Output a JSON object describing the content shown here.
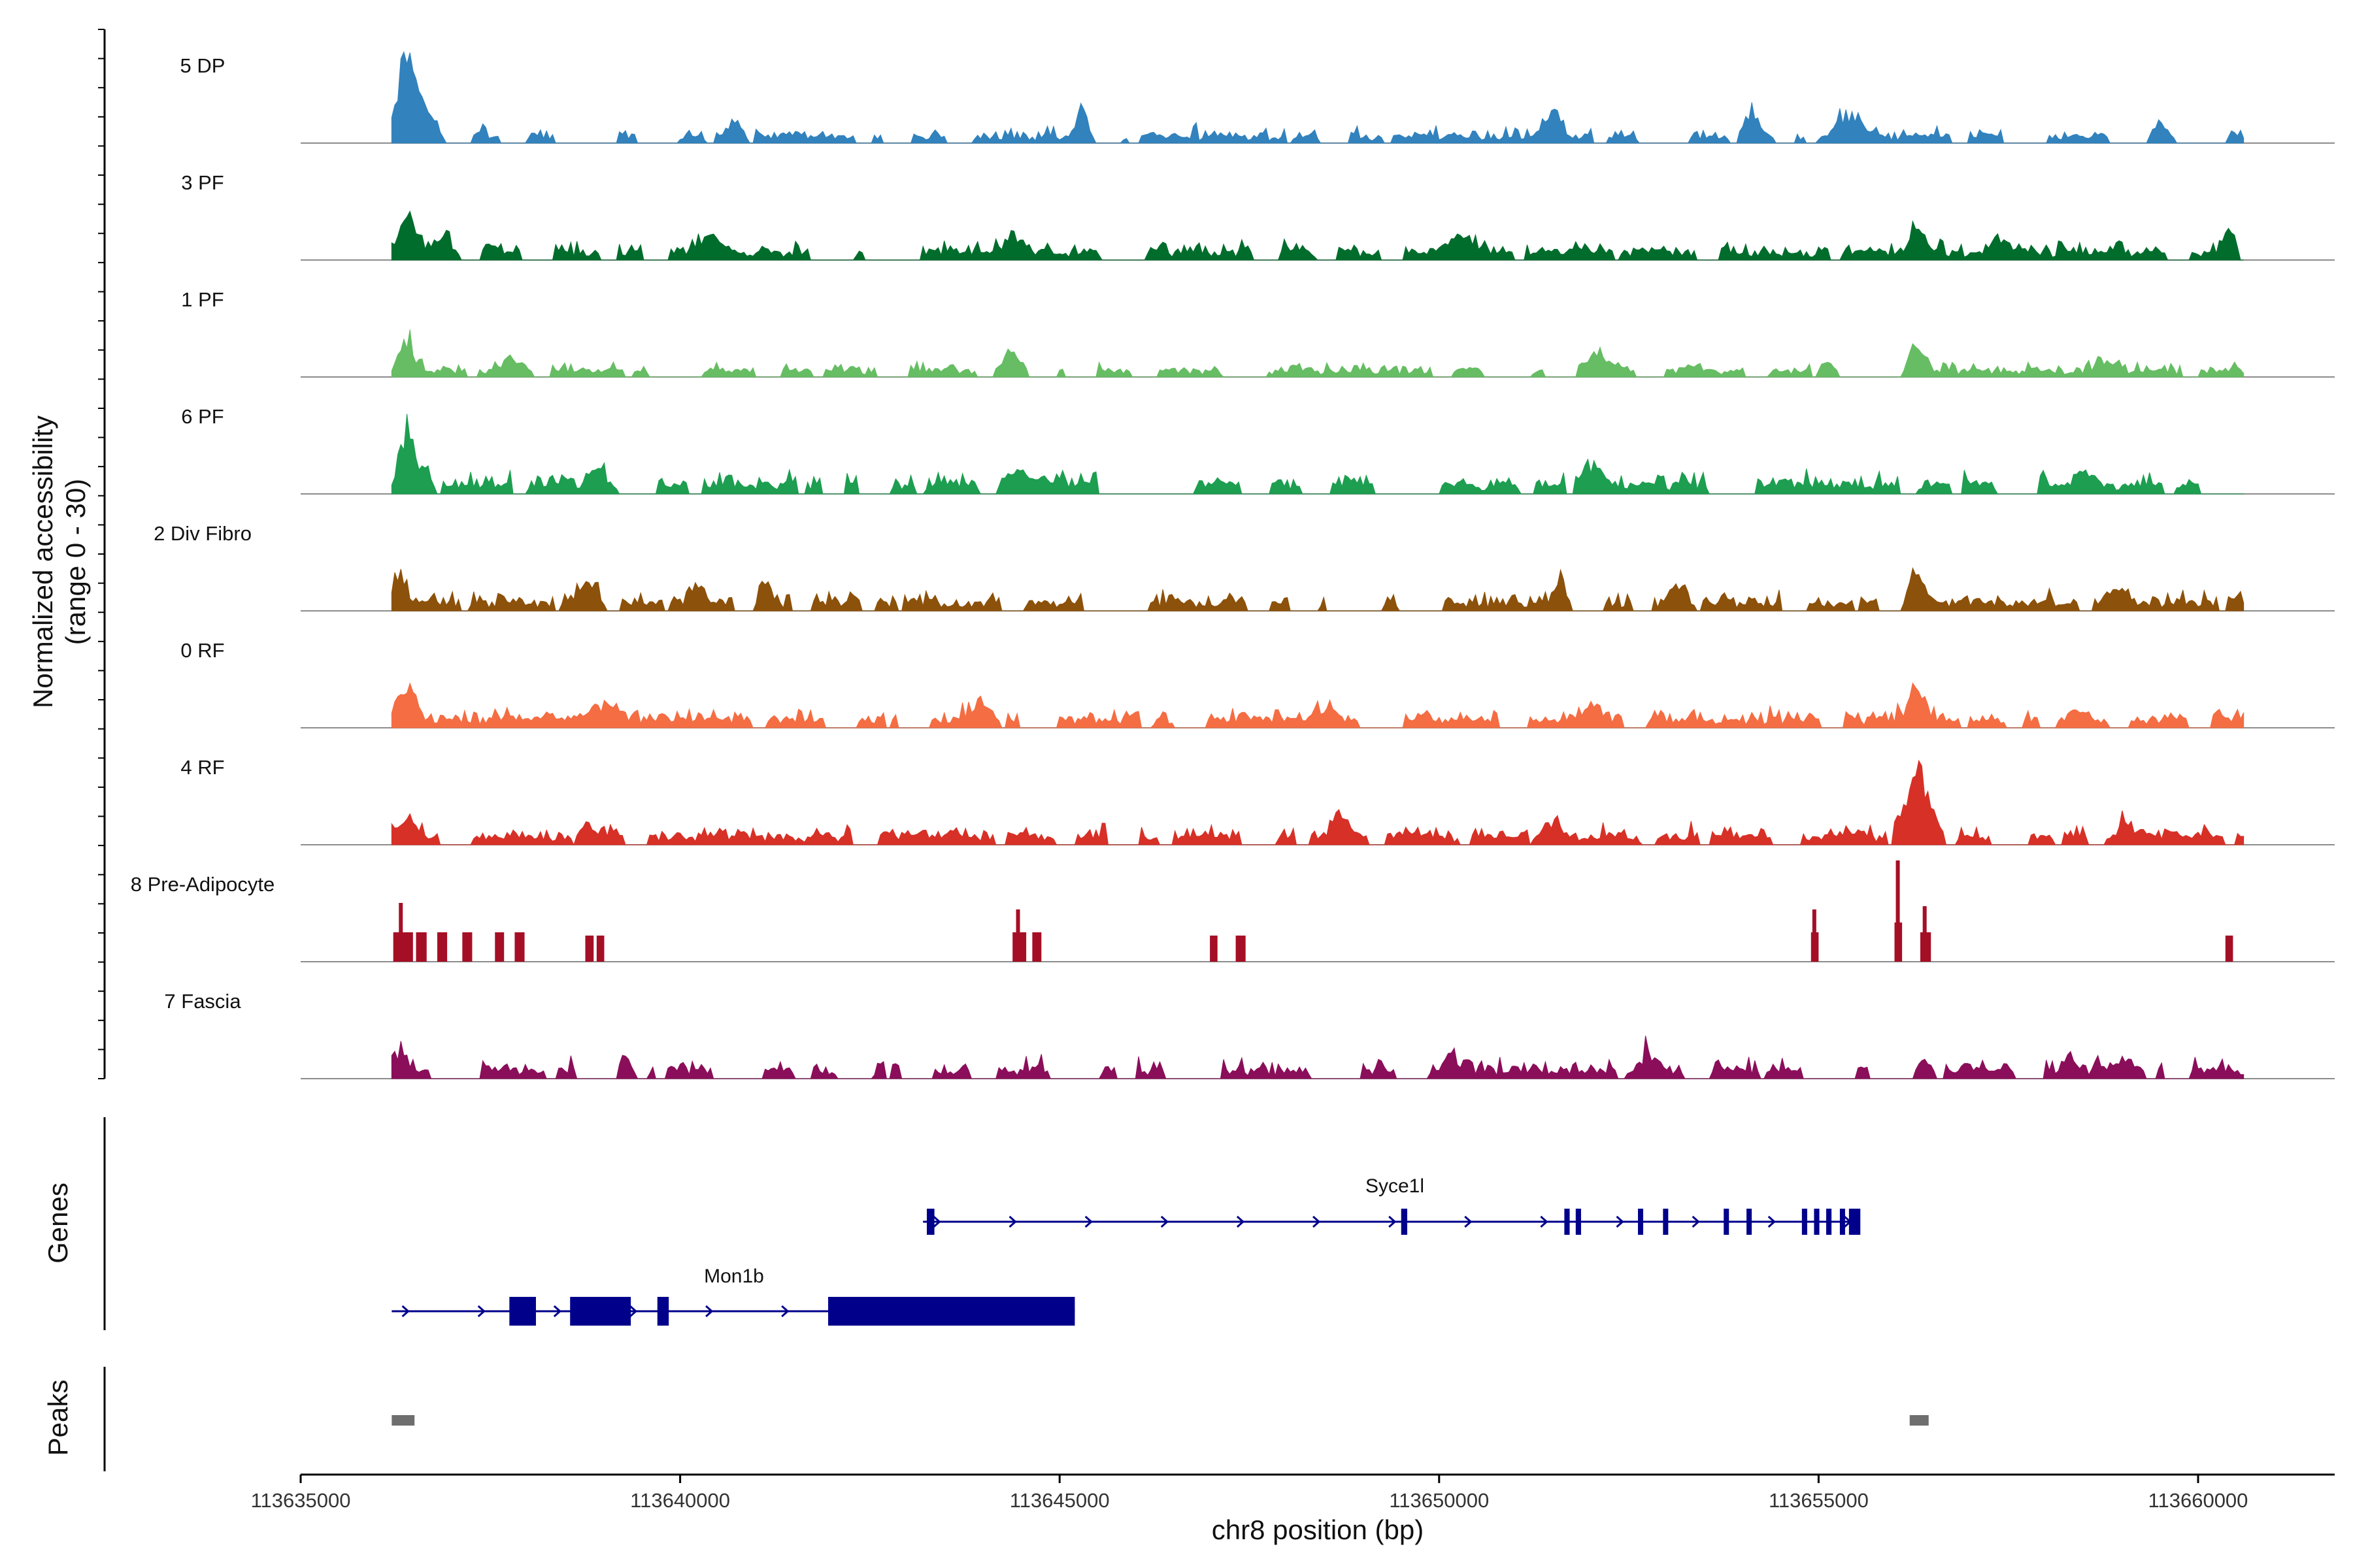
{
  "chart_data": {
    "type": "area",
    "title": "",
    "ylabel_line1": "Normalized accessibility",
    "ylabel_line2": "(range 0 - 30)",
    "xlabel": "chr8 position (bp)",
    "chromosome": "chr8",
    "xlim": [
      113635000,
      113661800
    ],
    "ylim": [
      0,
      30
    ],
    "x_ticks": [
      {
        "value": 113635000,
        "label": "113635000"
      },
      {
        "value": 113640000,
        "label": "113640000"
      },
      {
        "value": 113645000,
        "label": "113645000"
      },
      {
        "value": 113650000,
        "label": "113650000"
      },
      {
        "value": 113655000,
        "label": "113655000"
      },
      {
        "value": 113660000,
        "label": "113660000"
      }
    ],
    "coverage_start": 113636200,
    "coverage_end": 113660600,
    "tracks": [
      {
        "name": "5 DP",
        "color": "#3182BD",
        "base": 1.6,
        "noise": 1.4,
        "density": 0.62,
        "seed": 11,
        "peaks": [
          [
            113636400,
            26,
            160
          ],
          [
            113636700,
            9,
            150
          ],
          [
            113640700,
            5,
            120
          ],
          [
            113645300,
            9,
            110
          ],
          [
            113651500,
            7,
            140
          ],
          [
            113654100,
            8,
            150
          ],
          [
            113655400,
            7,
            200
          ],
          [
            113659500,
            6,
            150
          ]
        ]
      },
      {
        "name": "3 PF",
        "color": "#006D2C",
        "base": 2.0,
        "noise": 1.5,
        "density": 0.72,
        "seed": 23,
        "peaks": [
          [
            113636400,
            11,
            140
          ],
          [
            113636900,
            6,
            160
          ],
          [
            113637500,
            5,
            140
          ],
          [
            113640400,
            5,
            200
          ],
          [
            113644400,
            5,
            150
          ],
          [
            113650300,
            5,
            200
          ],
          [
            113656300,
            7,
            140
          ],
          [
            113657400,
            5,
            150
          ],
          [
            113660400,
            6,
            120
          ]
        ]
      },
      {
        "name": "1 PF",
        "color": "#66BD63",
        "base": 1.5,
        "noise": 1.2,
        "density": 0.66,
        "seed": 37,
        "peaks": [
          [
            113636400,
            9,
            140
          ],
          [
            113637800,
            3,
            200
          ],
          [
            113644400,
            5,
            180
          ],
          [
            113650400,
            3,
            250
          ],
          [
            113652100,
            5,
            200
          ],
          [
            113655100,
            4,
            150
          ],
          [
            113656300,
            7,
            150
          ],
          [
            113658800,
            3,
            180
          ]
        ]
      },
      {
        "name": "6 PF",
        "color": "#1D9E50",
        "base": 2.2,
        "noise": 1.8,
        "density": 0.58,
        "seed": 49,
        "peaks": [
          [
            113636400,
            17,
            120
          ],
          [
            113636650,
            9,
            100
          ],
          [
            113638900,
            5,
            250
          ],
          [
            113644400,
            8,
            200
          ],
          [
            113644800,
            5,
            200
          ],
          [
            113652000,
            5,
            200
          ],
          [
            113658500,
            4,
            150
          ]
        ]
      },
      {
        "name": "2 Div Fibro",
        "color": "#8C510A",
        "base": 2.0,
        "noise": 1.6,
        "density": 0.6,
        "seed": 61,
        "peaks": [
          [
            113636300,
            8,
            120
          ],
          [
            113638800,
            6,
            180
          ],
          [
            113640200,
            5,
            120
          ],
          [
            113641100,
            5,
            120
          ],
          [
            113651600,
            7,
            120
          ],
          [
            113653200,
            4,
            200
          ],
          [
            113656300,
            9,
            150
          ],
          [
            113658900,
            4,
            150
          ]
        ]
      },
      {
        "name": "0 RF",
        "color": "#F46D43",
        "base": 2.2,
        "noise": 1.5,
        "density": 0.78,
        "seed": 73,
        "peaks": [
          [
            113636400,
            10,
            160
          ],
          [
            113639000,
            5,
            250
          ],
          [
            113644000,
            6,
            200
          ],
          [
            113648500,
            6,
            160
          ],
          [
            113652000,
            4,
            200
          ],
          [
            113656300,
            10,
            140
          ]
        ]
      },
      {
        "name": "4 RF",
        "color": "#D73027",
        "base": 2.0,
        "noise": 1.6,
        "density": 0.74,
        "seed": 89,
        "peaks": [
          [
            113636400,
            5,
            160
          ],
          [
            113638800,
            6,
            180
          ],
          [
            113643600,
            5,
            160
          ],
          [
            113648700,
            6,
            160
          ],
          [
            113651400,
            5,
            160
          ],
          [
            113656300,
            20,
            220
          ],
          [
            113659000,
            4,
            200
          ]
        ]
      },
      {
        "name": "8 Pre-Adipocyte",
        "color": "#A50F25",
        "base": 0,
        "noise": 0,
        "density": 0,
        "seed": 97,
        "peaks": [],
        "blocks": [
          [
            113636220,
            113636480,
            9,
            18
          ],
          [
            113636520,
            113636660,
            9,
            0
          ],
          [
            113636800,
            113636930,
            9,
            0
          ],
          [
            113637130,
            113637260,
            9,
            0
          ],
          [
            113637560,
            113637680,
            9,
            0
          ],
          [
            113637820,
            113637950,
            9,
            0
          ],
          [
            113638750,
            113638860,
            8,
            0
          ],
          [
            113638900,
            113639000,
            8,
            0
          ],
          [
            113644380,
            113644560,
            9,
            16
          ],
          [
            113644640,
            113644760,
            9,
            0
          ],
          [
            113646980,
            113647080,
            8,
            0
          ],
          [
            113647320,
            113647450,
            8,
            0
          ],
          [
            113654900,
            113655000,
            9,
            16
          ],
          [
            113656000,
            113656100,
            12,
            31
          ],
          [
            113656340,
            113656480,
            9,
            17
          ],
          [
            113660360,
            113660460,
            8,
            0
          ]
        ]
      },
      {
        "name": "7 Fascia",
        "color": "#8A0E5A",
        "base": 2.0,
        "noise": 1.8,
        "density": 0.62,
        "seed": 113,
        "peaks": [
          [
            113636300,
            5,
            160
          ],
          [
            113639300,
            5,
            120
          ],
          [
            113650200,
            5,
            150
          ],
          [
            113652700,
            5,
            200
          ],
          [
            113656400,
            6,
            120
          ],
          [
            113658300,
            7,
            150
          ],
          [
            113659100,
            5,
            200
          ]
        ]
      }
    ],
    "genes": [
      {
        "name": "Syce1l",
        "color": "#00008B",
        "strand": "+",
        "start": 113643200,
        "end": 113655500,
        "row": 0,
        "exons": [
          [
            113643250,
            113643350
          ],
          [
            113649500,
            113649580
          ],
          [
            113651650,
            113651720
          ],
          [
            113651800,
            113651870
          ],
          [
            113652620,
            113652680
          ],
          [
            113652950,
            113653010
          ],
          [
            113653750,
            113653810
          ],
          [
            113654050,
            113654110
          ],
          [
            113654780,
            113654850
          ],
          [
            113654940,
            113655010
          ],
          [
            113655100,
            113655170
          ],
          [
            113655280,
            113655340
          ],
          [
            113655400,
            113655550
          ]
        ]
      },
      {
        "name": "Mon1b",
        "color": "#00008B",
        "strand": "+",
        "start": 113636200,
        "end": 113645200,
        "row": 1,
        "exons": [
          [
            113637750,
            113638100
          ],
          [
            113638550,
            113639350
          ],
          [
            113639700,
            113639850
          ],
          [
            113641950,
            113645200
          ]
        ]
      }
    ],
    "peaks_track": {
      "label": "Peaks",
      "color": "#6E6E6E",
      "regions": [
        [
          113636200,
          113636500
        ],
        [
          113656200,
          113656450
        ]
      ]
    },
    "genes_label": "Genes"
  }
}
